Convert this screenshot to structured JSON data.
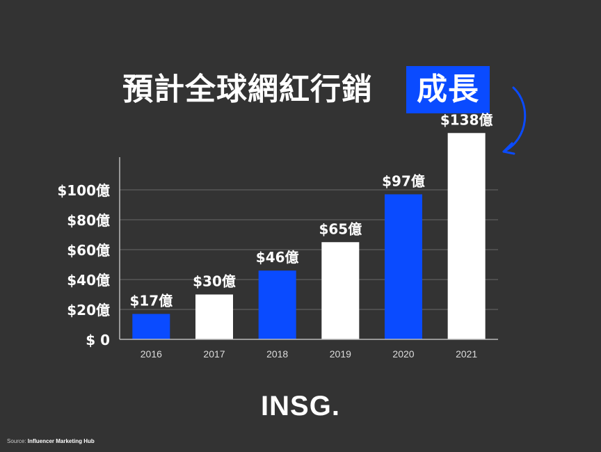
{
  "header": {
    "title_main": "預計全球網紅行銷",
    "title_highlight": "成長"
  },
  "colors": {
    "accent": "#0a4bff",
    "white_bar": "#ffffff",
    "background": "#333333",
    "grid": "#6a6a6a"
  },
  "chart_data": {
    "type": "bar",
    "categories": [
      "2016",
      "2017",
      "2018",
      "2019",
      "2020",
      "2021"
    ],
    "values": [
      17,
      30,
      46,
      65,
      97,
      138
    ],
    "value_labels": [
      "$17億",
      "$30億",
      "$46億",
      "$65億",
      "$97億",
      "$138億"
    ],
    "bar_colors": [
      "accent",
      "white",
      "accent",
      "white",
      "accent",
      "white"
    ],
    "ytick_values": [
      0,
      20,
      40,
      60,
      80,
      100
    ],
    "yticks": [
      "$ 0",
      "$20億",
      "$40億",
      "$60億",
      "$80億",
      "$100億"
    ],
    "ylim": [
      0,
      120
    ],
    "grid": true,
    "title": "預計全球網紅行銷 成長",
    "xlabel": "",
    "ylabel": ""
  },
  "logo": {
    "text": "INSG."
  },
  "footer": {
    "source_prefix": "Source: ",
    "source_name": "Influencer Marketing Hub"
  }
}
